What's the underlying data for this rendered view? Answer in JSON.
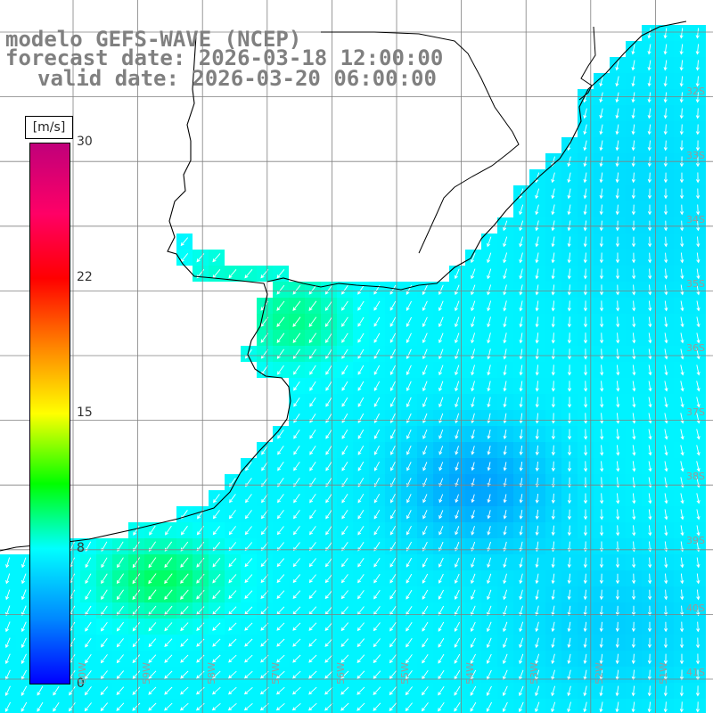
{
  "title": {
    "line1": "modelo GEFS-WAVE (NCEP)",
    "line2": "forecast date: 2026-03-18 12:00:00",
    "line3": "valid date: 2026-03-20 06:00:00"
  },
  "colorbar": {
    "unit": "[m/s]",
    "ticks": [
      {
        "label": "30",
        "value": 30
      },
      {
        "label": "22",
        "value": 22
      },
      {
        "label": "15",
        "value": 15
      },
      {
        "label": "8",
        "value": 8
      },
      {
        "label": "0",
        "value": 0
      }
    ],
    "colors": [
      "#0000ff",
      "#0088ff",
      "#00ffff",
      "#00ff00",
      "#ffff00",
      "#ff8800",
      "#ff0000",
      "#ff0066",
      "#c0007a"
    ]
  },
  "map": {
    "variable": "wind speed and direction (arrows)",
    "land_color": "#ffffff",
    "coastline_color": "#000000",
    "grid_color": "#808080",
    "lat_labels": [
      "32S",
      "33S",
      "34S",
      "35S",
      "36S",
      "37S",
      "38S",
      "39S",
      "40S",
      "41S"
    ],
    "lon_labels": [
      "60W",
      "59W",
      "58W",
      "57W",
      "56W",
      "55W",
      "54W",
      "53W",
      "52W",
      "51W"
    ]
  }
}
